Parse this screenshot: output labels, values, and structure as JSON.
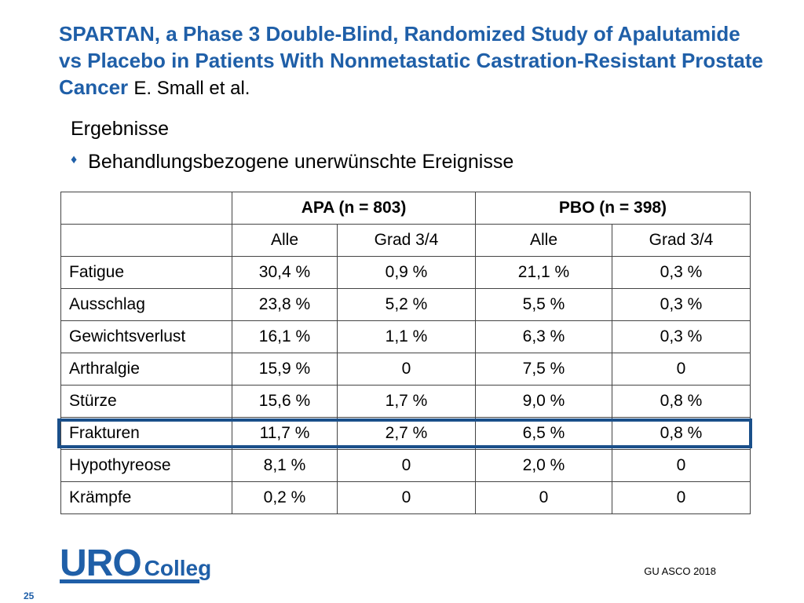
{
  "title": {
    "main": "SPARTAN, a Phase 3 Double-Blind, Randomized Study of Apalutamide vs Placebo in Patients With Nonmetastatic Castration-Resistant Prostate Cancer",
    "author": "E. Small et al."
  },
  "section": "Ergebnisse",
  "bullet": "Behandlungsbezogene unerwünschte Ereignisse",
  "table": {
    "groups": [
      "APA (n = 803)",
      "PBO (n = 398)"
    ],
    "subheaders": [
      "Alle",
      "Grad 3/4",
      "Alle",
      "Grad 3/4"
    ],
    "rows": [
      {
        "label": "Fatigue",
        "values": [
          "30,4 %",
          "0,9 %",
          "21,1 %",
          "0,3 %"
        ]
      },
      {
        "label": "Ausschlag",
        "values": [
          "23,8 %",
          "5,2 %",
          "5,5 %",
          "0,3 %"
        ]
      },
      {
        "label": "Gewichtsverlust",
        "values": [
          "16,1 %",
          "1,1 %",
          "6,3 %",
          "0,3 %"
        ]
      },
      {
        "label": "Arthralgie",
        "values": [
          "15,9 %",
          "0",
          "7,5 %",
          "0"
        ]
      },
      {
        "label": "Stürze",
        "values": [
          "15,6 %",
          "1,7 %",
          "9,0 %",
          "0,8 %"
        ]
      },
      {
        "label": "Frakturen",
        "values": [
          "11,7 %",
          "2,7 %",
          "6,5 %",
          "0,8 %"
        ]
      },
      {
        "label": "Hypothyreose",
        "values": [
          "8,1 %",
          "0",
          "2,0 %",
          "0"
        ]
      },
      {
        "label": "Krämpfe",
        "values": [
          "0,2 %",
          "0",
          "0",
          "0"
        ]
      }
    ]
  },
  "logo": {
    "part1": "URO",
    "part2": "Colleg"
  },
  "footer": {
    "source": "GU ASCO 2018",
    "page": "25"
  },
  "colors": {
    "accent": "#1f5fa8",
    "highlight": "#1a4f8a"
  }
}
